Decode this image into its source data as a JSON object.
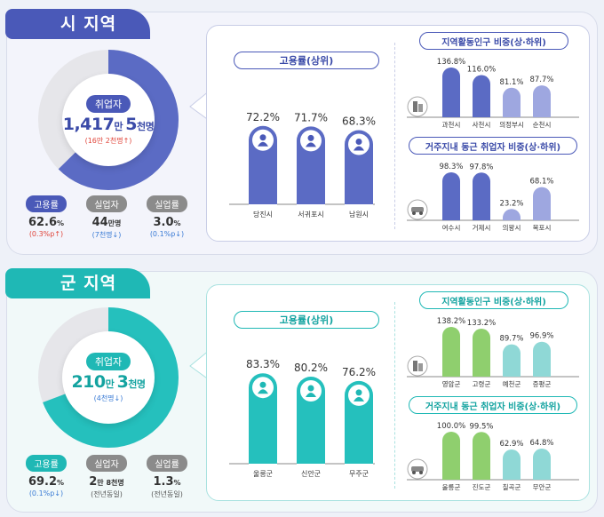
{
  "si": {
    "tab": "시 지역",
    "employed_label": "취업자",
    "employed_value": "1,417",
    "employed_unit1": "만 ",
    "employed_value2": "5",
    "employed_unit2": "천명",
    "employed_change": "(16만 2천명↑)",
    "donut_fraction": 0.626,
    "stats": [
      {
        "label": "고용률",
        "value": "62.6",
        "unit": "%",
        "change": "(0.3%p↑)",
        "change_color": "#e0453a"
      },
      {
        "label": "실업자",
        "value": "44",
        "unit": "만명",
        "change": "(7천명↓)",
        "change_color": "#3a7bd5"
      },
      {
        "label": "실업률",
        "value": "3.0",
        "unit": "%",
        "change": "(0.1%p↓)",
        "change_color": "#3a7bd5"
      }
    ],
    "employment_rate_title": "고용률(상위)",
    "activity_title": "지역활동인구 비중(상·하위)",
    "commute_title": "거주지내 동근 취업자 비중(상·하위)"
  },
  "gun": {
    "tab": "군 지역",
    "employed_label": "취업자",
    "employed_value": "210",
    "employed_unit1": "만 ",
    "employed_value2": "3",
    "employed_unit2": "천명",
    "employed_change": "(4천명↓)",
    "donut_fraction": 0.692,
    "stats": [
      {
        "label": "고용률",
        "value": "69.2",
        "unit": "%",
        "change": "(0.1%p↓)",
        "change_color": "#3a7bd5"
      },
      {
        "label": "실업자",
        "value": "2",
        "unit": "만 8천명",
        "change": "(전년동일)",
        "change_color": "#555"
      },
      {
        "label": "실업률",
        "value": "1.3",
        "unit": "%",
        "change": "(전년동일)",
        "change_color": "#555"
      }
    ],
    "employment_rate_title": "고용률(상위)",
    "activity_title": "지역활동인구 비중(상·하위)",
    "commute_title": "거주지내 동근 취업자 비중(상·하위)"
  },
  "colors": {
    "si_main": "#5b6bc4",
    "si_light": "#9ea7e0",
    "gun_main": "#25c0bd",
    "gun_light": "#8fd8d6",
    "green": "#8fcf6e",
    "red": "#e0453a",
    "blue": "#3a7bd5"
  },
  "chart_data": [
    {
      "id": "si_rate",
      "type": "bar",
      "title": "고용률(상위)",
      "categories": [
        "당진시",
        "서귀포시",
        "남원시"
      ],
      "values": [
        72.2,
        71.7,
        68.3
      ],
      "unit": "%"
    },
    {
      "id": "si_activity",
      "type": "bar",
      "title": "지역활동인구 비중(상·하위)",
      "categories": [
        "과천시",
        "사천시",
        "의정부시",
        "순천시"
      ],
      "values": [
        136.8,
        116.0,
        81.1,
        87.7
      ],
      "unit": "%"
    },
    {
      "id": "si_commute",
      "type": "bar",
      "title": "거주지내 동근 취업자 비중(상·하위)",
      "categories": [
        "여수시",
        "거제시",
        "의왕시",
        "목포시"
      ],
      "values": [
        98.3,
        97.8,
        23.2,
        68.1
      ],
      "unit": "%"
    },
    {
      "id": "gun_rate",
      "type": "bar",
      "title": "고용률(상위)",
      "categories": [
        "울릉군",
        "신안군",
        "무주군"
      ],
      "values": [
        83.3,
        80.2,
        76.2
      ],
      "unit": "%"
    },
    {
      "id": "gun_activity",
      "type": "bar",
      "title": "지역활동인구 비중(상·하위)",
      "categories": [
        "영암군",
        "고령군",
        "예천군",
        "증평군"
      ],
      "values": [
        138.2,
        133.2,
        89.7,
        96.9
      ],
      "unit": "%"
    },
    {
      "id": "gun_commute",
      "type": "bar",
      "title": "거주지내 동근 취업자 비중(상·하위)",
      "categories": [
        "울릉군",
        "진도군",
        "칠곡군",
        "무안군"
      ],
      "values": [
        100.0,
        99.5,
        62.9,
        64.8
      ],
      "unit": "%"
    }
  ]
}
